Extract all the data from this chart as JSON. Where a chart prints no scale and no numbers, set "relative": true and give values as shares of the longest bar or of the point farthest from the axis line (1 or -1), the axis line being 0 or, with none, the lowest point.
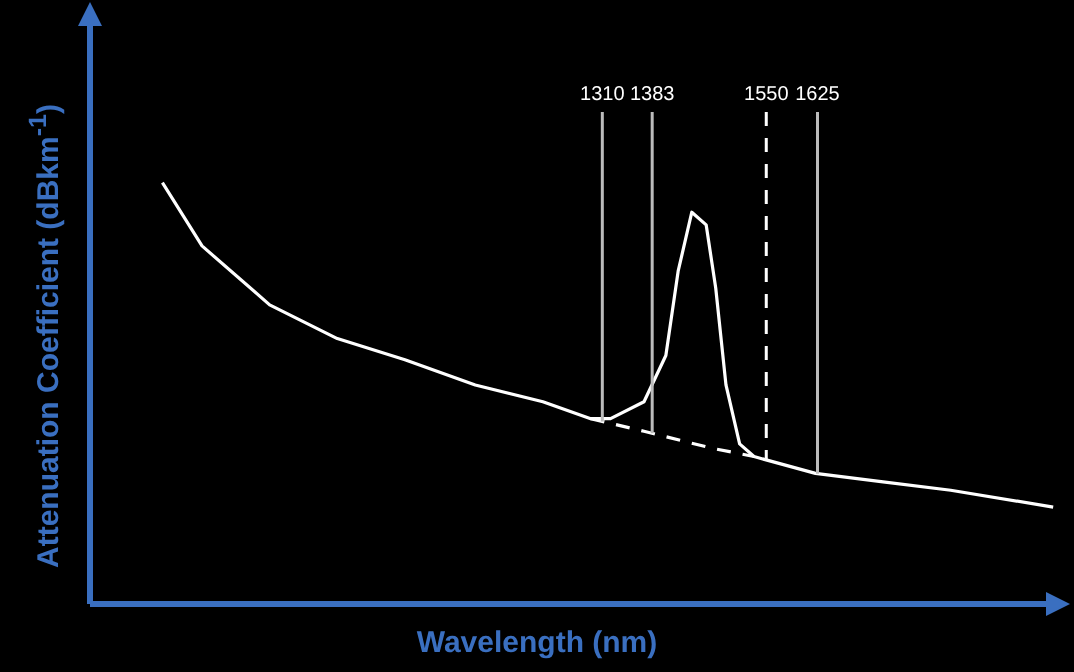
{
  "chart_data": {
    "type": "line",
    "xlabel": "Wavelength (nm)",
    "ylabel": "Attenuation Coefficient (dBkm$^{-1}$)",
    "relative": true,
    "xlim": [
      560,
      1980
    ],
    "xticks": [
      1310,
      1383,
      1550,
      1625
    ],
    "tick_labels": "x",
    "legend": false,
    "marker": "none",
    "series": [
      {
        "color": "#ffffff",
        "line_style": "solid",
        "x": [
          666,
          724,
          823,
          922,
          1021,
          1124,
          1223,
          1293,
          1322,
          1371,
          1403,
          1421,
          1441,
          1462,
          1476,
          1491,
          1511,
          1532,
          1622,
          1721,
          1820,
          1970
        ],
        "values": [
          1,
          0.85,
          0.71,
          0.63,
          0.58,
          0.52,
          0.48,
          0.44,
          0.44,
          0.48,
          0.59,
          0.79,
          0.93,
          0.9,
          0.75,
          0.52,
          0.38,
          0.35,
          0.31,
          0.29,
          0.27,
          0.23
        ]
      },
      {
        "color": "#ffffff",
        "line_style": "dashed",
        "x": [
          1293,
          1371,
          1470,
          1532
        ],
        "values": [
          0.44,
          0.41,
          0.37,
          0.35
        ]
      }
    ],
    "ref_lines": [
      {
        "axis": "x",
        "value": 1310,
        "color": "#bbbbbb",
        "line_style": "solid"
      },
      {
        "axis": "x",
        "value": 1383,
        "color": "#bbbbbb",
        "line_style": "solid"
      },
      {
        "axis": "x",
        "value": 1550,
        "color": "#ffffff",
        "line_style": "dashed"
      },
      {
        "axis": "x",
        "value": 1625,
        "color": "#bbbbbb",
        "line_style": "solid"
      }
    ]
  }
}
